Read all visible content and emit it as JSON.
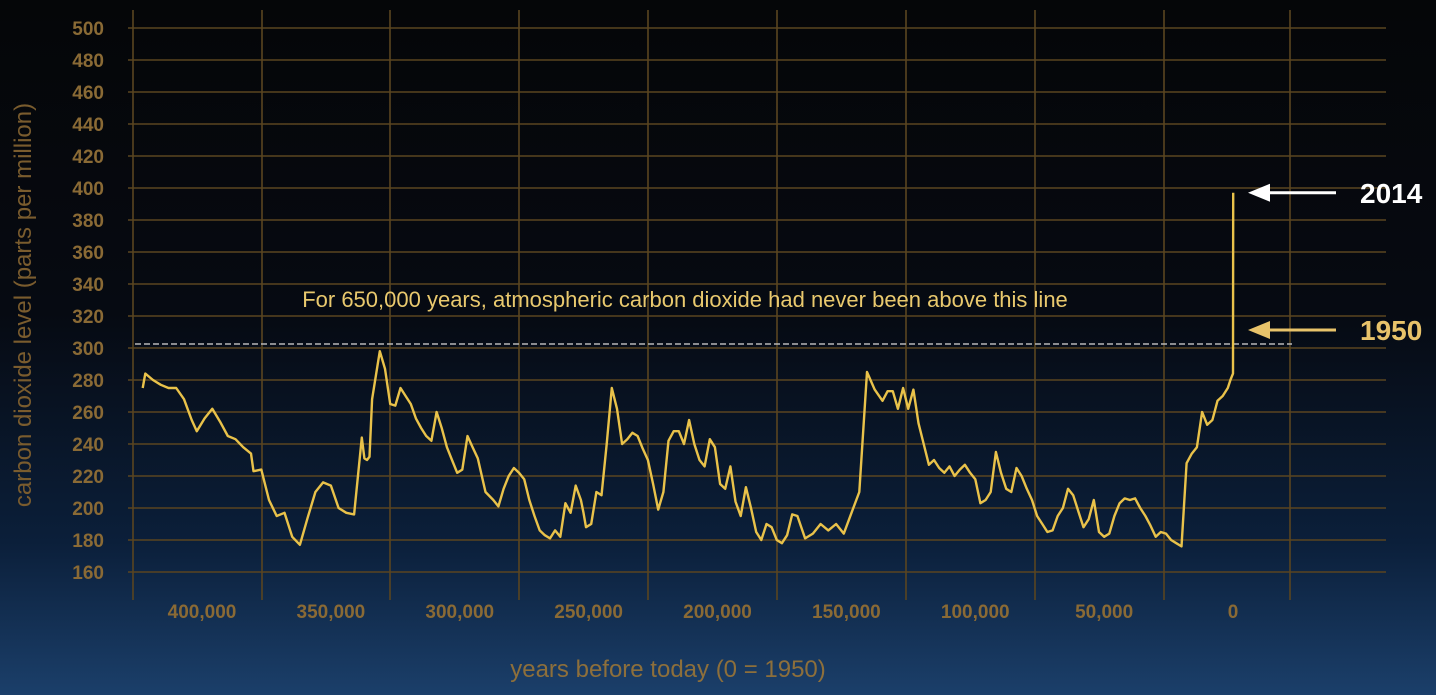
{
  "chart_data": {
    "type": "line",
    "ylabel": "carbon dioxide level (parts per million)",
    "xlabel": "years before today (0 = 1950)",
    "ylim": [
      160,
      500
    ],
    "xlim": [
      425000,
      -12000
    ],
    "x_reversed": true,
    "grid": true,
    "y_ticks": [
      160,
      180,
      200,
      220,
      240,
      260,
      280,
      300,
      320,
      340,
      360,
      380,
      400,
      420,
      440,
      460,
      480,
      500
    ],
    "x_ticks": [
      {
        "value": 400000,
        "label": "400,000"
      },
      {
        "value": 350000,
        "label": "350,000"
      },
      {
        "value": 300000,
        "label": "300,000"
      },
      {
        "value": 250000,
        "label": "250,000"
      },
      {
        "value": 200000,
        "label": "200,000"
      },
      {
        "value": 150000,
        "label": "150,000"
      },
      {
        "value": 100000,
        "label": "100,000"
      },
      {
        "value": 50000,
        "label": "50,000"
      },
      {
        "value": 0,
        "label": "0"
      }
    ],
    "reference_line": {
      "value": 300,
      "label": "For 650,000 years, atmospheric carbon dioxide had never been above this line"
    },
    "annotations": [
      {
        "label": "2014",
        "x": -64,
        "y": 397,
        "color": "#ffffff"
      },
      {
        "label": "1950",
        "x": 0,
        "y": 315,
        "color": "#e8c36a"
      }
    ],
    "colors": {
      "line": "#e9c24a",
      "axis_text": "#8a6a35",
      "grid": "#5a4520",
      "ref_line": "#b8b8b8"
    },
    "series": [
      {
        "x": [
          423000,
          422000,
          419000,
          416000,
          413000,
          410000,
          407000,
          404000,
          402000,
          399000,
          396000,
          393000,
          390000,
          387000,
          384000,
          381000,
          380000,
          377000,
          374000,
          371000,
          368000,
          365000,
          362000,
          359000,
          356000,
          353000,
          350000,
          347000,
          344000,
          341000,
          338000,
          337000,
          336000,
          335000,
          334000,
          331000,
          329000,
          327000,
          325000,
          323000,
          321000,
          319000,
          317000,
          315000,
          313000,
          311000,
          309000,
          307000,
          305000,
          303000,
          301000,
          299000,
          297000,
          295000,
          293000,
          290000,
          287000,
          285000,
          283000,
          281000,
          279000,
          277000,
          275000,
          273000,
          271000,
          269000,
          267000,
          265000,
          263000,
          261000,
          259000,
          257000,
          255000,
          253000,
          252000,
          251000,
          249000,
          247000,
          245000,
          243000,
          241000,
          239000,
          237000,
          235000,
          233000,
          231000,
          229000,
          227000,
          225000,
          223000,
          221000,
          219000,
          217000,
          215000,
          213000,
          211000,
          209000,
          207000,
          205000,
          203000,
          201000,
          199000,
          197000,
          195000,
          193000,
          191000,
          189000,
          187000,
          185000,
          183000,
          181000,
          179000,
          177000,
          175000,
          173000,
          171000,
          169000,
          166000,
          163000,
          160000,
          157000,
          154000,
          151000,
          148000,
          145000,
          142000,
          139000,
          136000,
          134000,
          132000,
          130000,
          128000,
          126000,
          124000,
          122000,
          120000,
          118000,
          116000,
          114000,
          112000,
          110000,
          108000,
          106000,
          104000,
          102000,
          100000,
          98000,
          96000,
          94000,
          92000,
          90000,
          88000,
          86000,
          84000,
          82000,
          80000,
          78000,
          76000,
          74000,
          72000,
          70000,
          68000,
          66000,
          64000,
          62000,
          60000,
          58000,
          56000,
          54000,
          52000,
          50000,
          48000,
          46000,
          44000,
          42000,
          40000,
          38000,
          36000,
          34000,
          32000,
          30000,
          28000,
          26000,
          24000,
          22000,
          20000,
          18000,
          16000,
          14000,
          12000,
          10000,
          8000,
          6000,
          4000,
          2000,
          1000,
          0,
          -64
        ],
        "y": [
          275,
          284,
          280,
          277,
          275,
          275,
          268,
          255,
          248,
          256,
          262,
          254,
          245,
          243,
          238,
          234,
          223,
          224,
          205,
          195,
          197,
          182,
          177,
          194,
          210,
          216,
          214,
          200,
          197,
          196,
          244,
          231,
          230,
          232,
          268,
          298,
          287,
          265,
          264,
          275,
          270,
          265,
          256,
          250,
          245,
          242,
          260,
          250,
          238,
          230,
          222,
          224,
          245,
          238,
          231,
          210,
          205,
          201,
          212,
          220,
          225,
          222,
          218,
          205,
          195,
          186,
          183,
          181,
          186,
          182,
          203,
          197,
          214,
          205,
          197,
          188,
          190,
          210,
          208,
          240,
          275,
          262,
          240,
          243,
          247,
          245,
          237,
          230,
          215,
          199,
          210,
          242,
          248,
          248,
          240,
          255,
          240,
          230,
          226,
          243,
          238,
          215,
          212,
          226,
          204,
          195,
          213,
          200,
          185,
          180,
          190,
          188,
          180,
          178,
          183,
          196,
          195,
          181,
          184,
          190,
          186,
          190,
          184,
          197,
          210,
          285,
          274,
          267,
          273,
          273,
          262,
          275,
          262,
          274,
          253,
          240,
          227,
          230,
          225,
          222,
          226,
          220,
          224,
          227,
          222,
          218,
          203,
          205,
          210,
          235,
          222,
          212,
          210,
          225,
          220,
          212,
          205,
          195,
          190,
          185,
          186,
          195,
          200,
          212,
          208,
          198,
          188,
          193,
          205,
          185,
          182,
          184,
          195,
          203,
          206,
          205,
          206,
          200,
          195,
          189,
          182,
          185,
          184,
          180,
          178,
          176,
          228,
          234,
          238,
          260,
          252,
          255,
          267,
          270,
          275,
          280,
          284,
          397
        ]
      }
    ]
  }
}
